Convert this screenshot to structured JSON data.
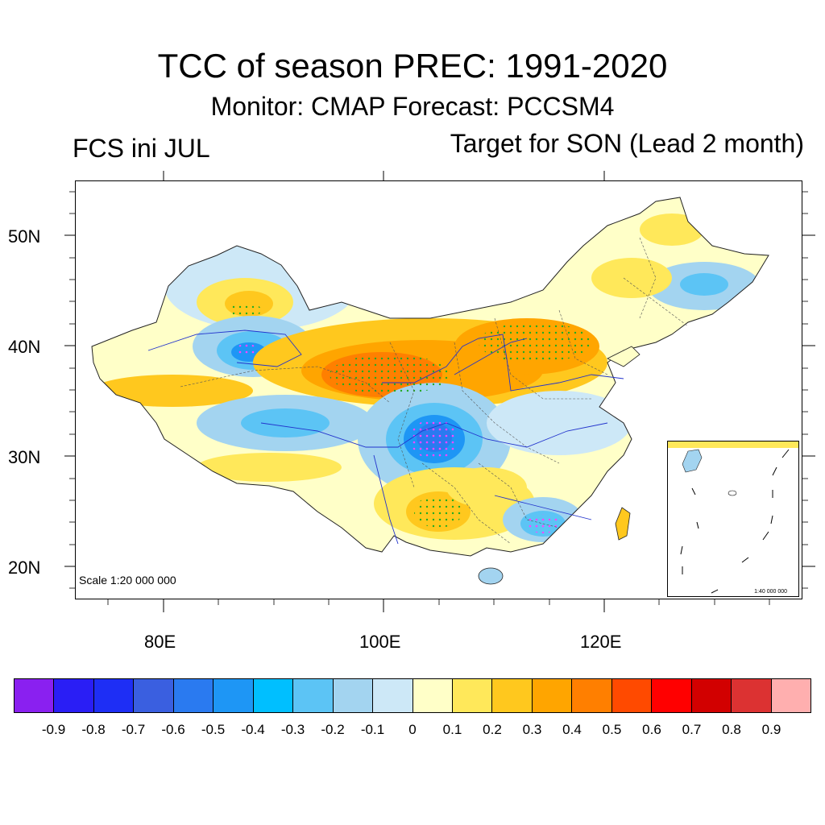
{
  "title": "TCC of season PREC: 1991-2020",
  "subtitle": "Monitor: CMAP   Forecast: PCCSM4",
  "left_label": "FCS ini JUL",
  "right_label": "Target for SON (Lead 2 month)",
  "map": {
    "lat_labels": [
      "50N",
      "40N",
      "30N",
      "20N"
    ],
    "lon_labels": [
      "80E",
      "100E",
      "120E"
    ],
    "scale_label": "Scale 1:20 000 000",
    "inset_scale_label": "1:40 000 000"
  },
  "colorbar": {
    "labels": [
      "-0.9",
      "-0.8",
      "-0.7",
      "-0.6",
      "-0.5",
      "-0.4",
      "-0.3",
      "-0.2",
      "-0.1",
      "0",
      "0.1",
      "0.2",
      "0.3",
      "0.4",
      "0.5",
      "0.6",
      "0.7",
      "0.8",
      "0.9"
    ],
    "colors": [
      "#8a20f0",
      "#2a1ef5",
      "#1e2ef5",
      "#3a5fe0",
      "#2a7af0",
      "#1e96f5",
      "#00bfff",
      "#5cc4f5",
      "#a3d4f0",
      "#cde8f7",
      "#ffffc8",
      "#ffe85a",
      "#ffc81e",
      "#ffa500",
      "#ff7f00",
      "#ff4a00",
      "#ff0000",
      "#d20000",
      "#dc3232",
      "#ffafaf"
    ]
  }
}
